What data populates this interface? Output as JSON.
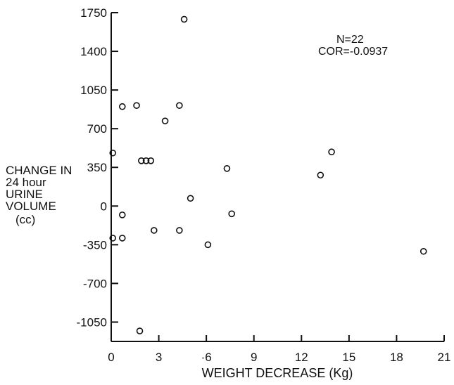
{
  "chart_data": {
    "type": "scatter",
    "xlabel": "WEIGHT DECREASE (Kg)",
    "ylabel_lines": [
      "CHANGE IN",
      "24 hour",
      "URINE",
      "VOLUME",
      "(cc)"
    ],
    "xlim": [
      0,
      21
    ],
    "ylim": [
      -1225,
      1750
    ],
    "x_ticks": [
      0,
      3,
      6,
      9,
      12,
      15,
      18,
      21
    ],
    "x_tick_labels": [
      "0",
      "3",
      "·6",
      "9",
      "12",
      "15",
      "18",
      "21"
    ],
    "y_ticks": [
      1750,
      1400,
      1050,
      700,
      350,
      0,
      -350,
      -700,
      -1050
    ],
    "y_tick_labels": [
      "1750",
      "1400",
      "1050",
      "700",
      "350",
      "0",
      "-350",
      "-700",
      "-1050"
    ],
    "annotations": [
      "N=22",
      "COR=-0.0937"
    ],
    "points": [
      {
        "x": 0.1,
        "y": 480
      },
      {
        "x": 0.7,
        "y": 900
      },
      {
        "x": 1.6,
        "y": 910
      },
      {
        "x": 4.3,
        "y": 910
      },
      {
        "x": 3.4,
        "y": 770
      },
      {
        "x": 4.6,
        "y": 1690
      },
      {
        "x": 1.9,
        "y": 410
      },
      {
        "x": 2.2,
        "y": 410
      },
      {
        "x": 2.5,
        "y": 410
      },
      {
        "x": 7.3,
        "y": 340
      },
      {
        "x": 13.2,
        "y": 280
      },
      {
        "x": 13.9,
        "y": 490
      },
      {
        "x": 5.0,
        "y": 70
      },
      {
        "x": 0.7,
        "y": -80
      },
      {
        "x": 7.6,
        "y": -70
      },
      {
        "x": 0.1,
        "y": -290
      },
      {
        "x": 0.7,
        "y": -290
      },
      {
        "x": 2.7,
        "y": -220
      },
      {
        "x": 4.3,
        "y": -220
      },
      {
        "x": 6.1,
        "y": -350
      },
      {
        "x": 19.7,
        "y": -410
      },
      {
        "x": 1.8,
        "y": -1130
      }
    ]
  }
}
